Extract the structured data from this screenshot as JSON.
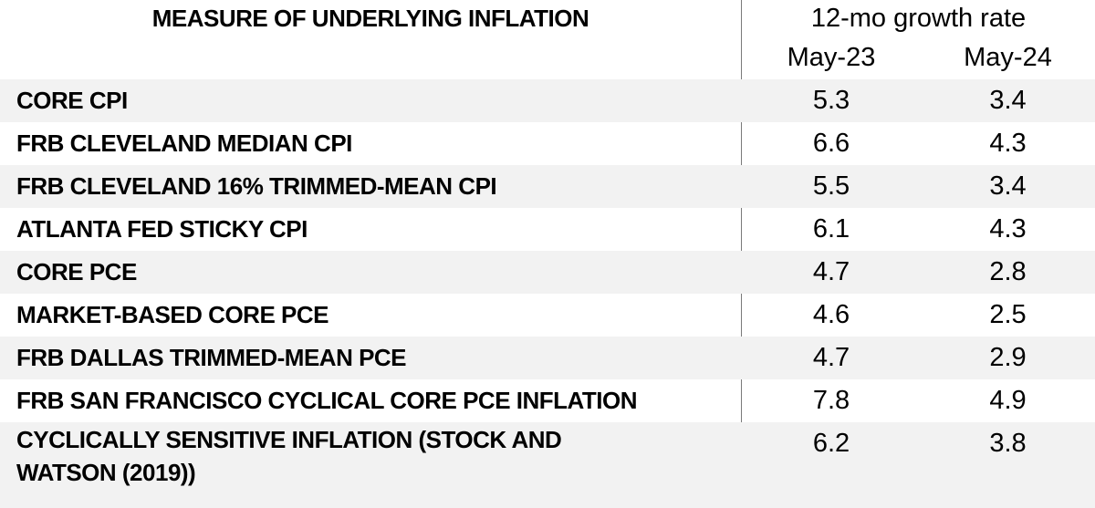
{
  "header": {
    "measure_label": "MEASURE OF UNDERLYING INFLATION",
    "growth_label": "12-mo growth rate",
    "columns": [
      "May-23",
      "May-24"
    ]
  },
  "rows": [
    {
      "name": "CORE CPI",
      "may23": "5.3",
      "may24": "3.4"
    },
    {
      "name": "FRB CLEVELAND MEDIAN CPI",
      "may23": "6.6",
      "may24": "4.3"
    },
    {
      "name": "FRB CLEVELAND 16% TRIMMED-MEAN CPI",
      "may23": "5.5",
      "may24": "3.4"
    },
    {
      "name": "ATLANTA FED STICKY CPI",
      "may23": "6.1",
      "may24": "4.3"
    },
    {
      "name": "CORE PCE",
      "may23": "4.7",
      "may24": "2.8"
    },
    {
      "name": "MARKET-BASED CORE PCE",
      "may23": "4.6",
      "may24": "2.5"
    },
    {
      "name": "FRB DALLAS TRIMMED-MEAN PCE",
      "may23": "4.7",
      "may24": "2.9"
    },
    {
      "name": "FRB SAN FRANCISCO CYCLICAL CORE PCE INFLATION",
      "may23": "7.8",
      "may24": "4.9"
    },
    {
      "name": "CYCLICALLY SENSITIVE INFLATION (STOCK AND WATSON (2019))",
      "may23": "6.2",
      "may24": "3.8"
    }
  ],
  "colors": {
    "row_shade": "#f2f2f2",
    "divider": "#7a7a7a",
    "text": "#000000"
  }
}
